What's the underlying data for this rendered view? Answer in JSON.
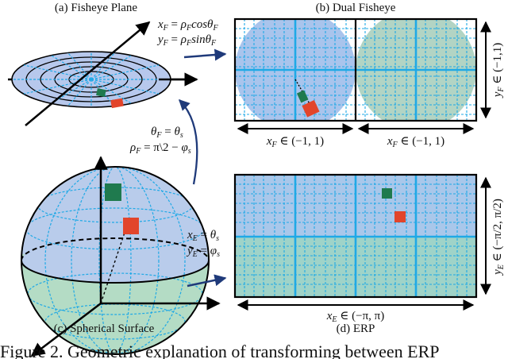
{
  "panels": {
    "fisheye_plane": "(a) Fisheye Plane",
    "dual_fisheye": "(b) Dual Fisheye",
    "spherical_surface": "(c) Spherical Surface",
    "erp": "(d) ERP"
  },
  "equations": {
    "fisheye_x": "x_F = ρ_F cos θ_F",
    "fisheye_y": "y_F = ρ_F sin θ_F",
    "sphere_to_fisheye_theta": "θ_F = θ_s",
    "sphere_to_fisheye_rho": "ρ_F = π\\2 − φ_s",
    "sphere_to_erp_x": "x_E = θ_s",
    "sphere_to_erp_y": "y_E = φ_s"
  },
  "axes": {
    "dual_left_x": "x_F ∈ (−1, 1)",
    "dual_right_x": "x_F ∈ (−1, 1)",
    "dual_y": "y_F ∈ (−1,1)",
    "erp_x": "x_E ∈ (−π, π)",
    "erp_y": "y_E ∈ (−π/2, π/2)"
  },
  "caption": "Figure 2.  Geometric explanation of transforming between ERP",
  "colors": {
    "disc_fill": "#b7c8ec",
    "fisheye_fill": "#a9c4ec",
    "fisheye_right_fill": "#b2d4c4",
    "grid_line": "#1fa9e6",
    "erp_fill": "#a9c7ea",
    "erp_lower_fill": "#9fd3c8",
    "sphere_top": "#b9cceb",
    "sphere_bottom": "#b4dcc5",
    "green_patch": "#1f7a4e",
    "red_patch": "#e2452b",
    "arrow": "#1f3a7a"
  }
}
